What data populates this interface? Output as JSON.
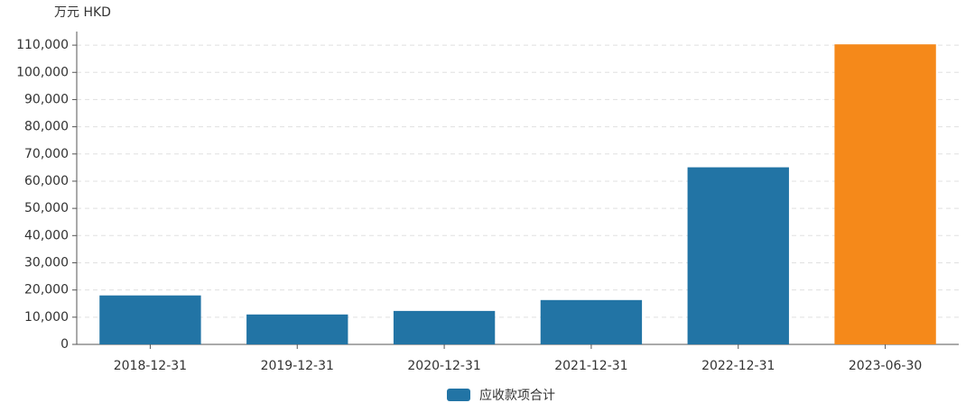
{
  "chart_data": {
    "type": "bar",
    "unit_label": "万元  HKD",
    "categories": [
      "2018-12-31",
      "2019-12-31",
      "2020-12-31",
      "2021-12-31",
      "2022-12-31",
      "2023-06-30"
    ],
    "series": [
      {
        "name": "应收款项合计",
        "color": "#2274a5",
        "values": [
          18000,
          11000,
          12300,
          16300,
          65100,
          110300
        ],
        "bar_colors": [
          "#2274a5",
          "#2274a5",
          "#2274a5",
          "#2274a5",
          "#2274a5",
          "#f5891a"
        ]
      }
    ],
    "ylim": [
      0,
      115000
    ],
    "yticks": [
      0,
      {
        "value": 10000,
        "label": "10,000"
      },
      {
        "value": 20000,
        "label": "20,000"
      },
      {
        "value": 30000,
        "label": "30,000"
      },
      {
        "value": 40000,
        "label": "40,000"
      },
      {
        "value": 50000,
        "label": "50,000"
      },
      {
        "value": 60000,
        "label": "60,000"
      },
      {
        "value": 70000,
        "label": "70,000"
      },
      {
        "value": 80000,
        "label": "80,000"
      },
      {
        "value": 90000,
        "label": "90,000"
      },
      {
        "value": 100000,
        "label": "100,000"
      },
      {
        "value": 110000,
        "label": "110,000"
      }
    ],
    "grid": true
  }
}
